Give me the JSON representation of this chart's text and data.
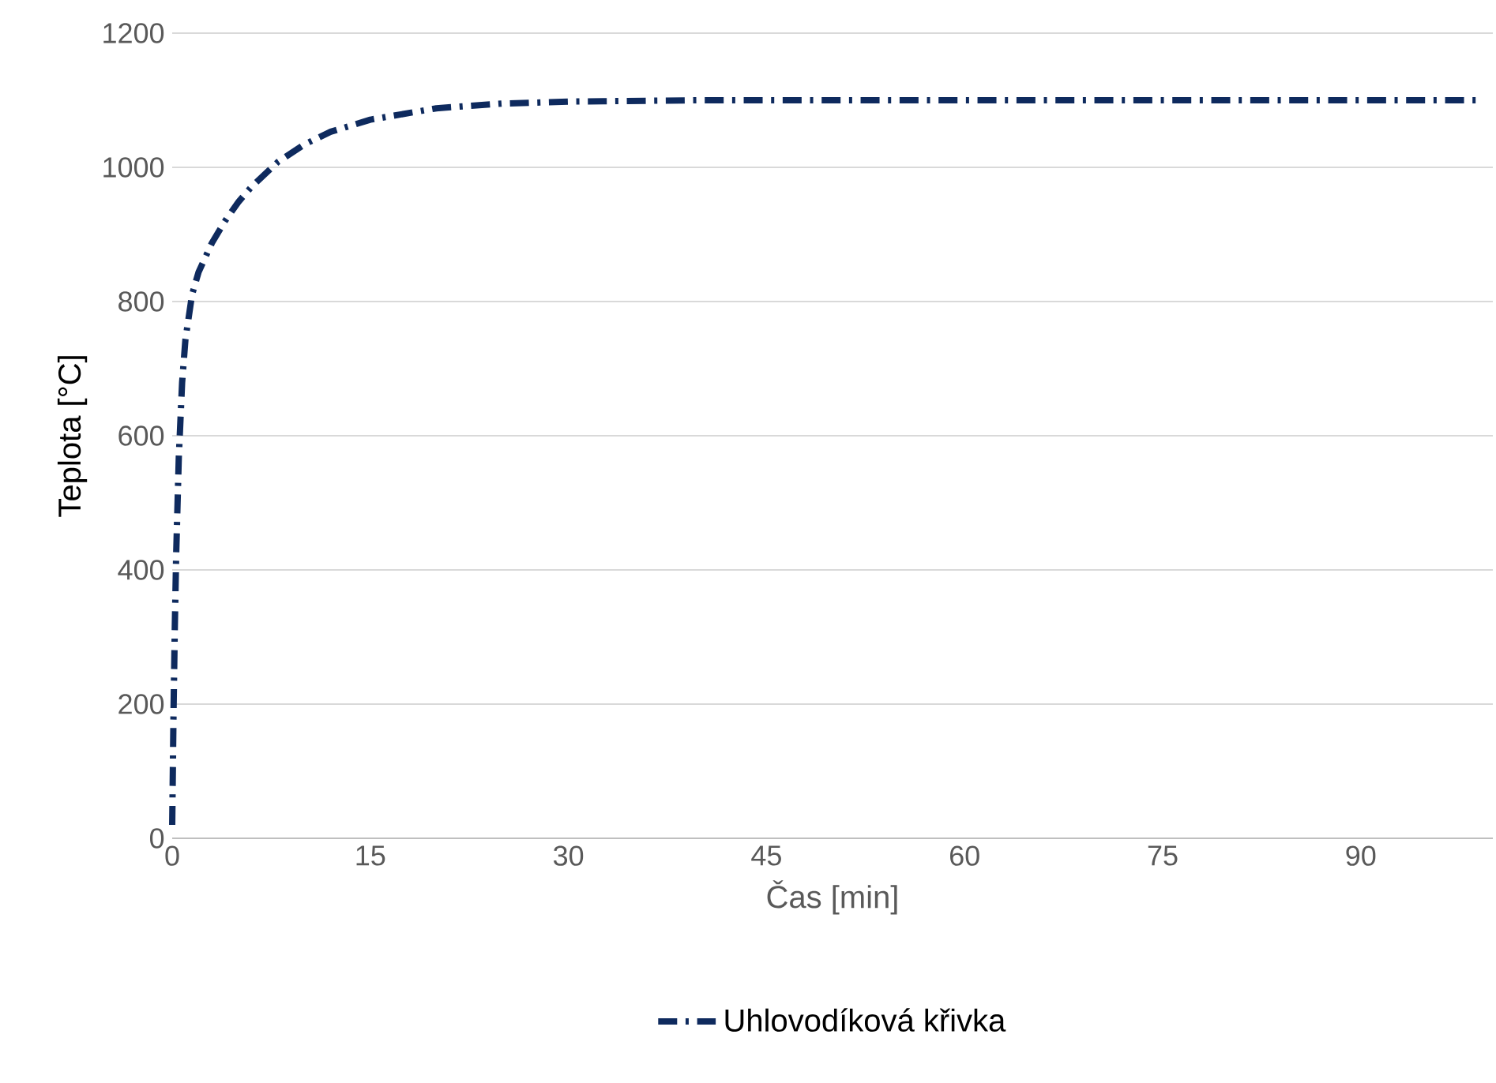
{
  "chart_data": {
    "type": "line",
    "xlabel": "Čas [min]",
    "ylabel": "Teplota [°C]",
    "x": [
      0,
      0.1,
      0.2,
      0.3,
      0.5,
      0.75,
      1,
      1.5,
      2,
      3,
      4,
      5,
      6,
      8,
      10,
      12,
      15,
      20,
      25,
      30,
      40,
      50,
      60,
      70,
      80,
      90,
      99
    ],
    "series": [
      {
        "name": "Uhlovodíková křivka",
        "color": "#0e2a5e",
        "values": [
          20,
          187,
          318,
          422,
          568,
          679,
          743,
          810,
          844,
          887,
          920,
          948,
          971,
          1008,
          1034,
          1053,
          1071,
          1088,
          1095,
          1098,
          1100,
          1100,
          1100,
          1100,
          1100,
          1100,
          1100
        ]
      }
    ],
    "xlim": [
      0,
      100
    ],
    "xticks": [
      0,
      15,
      30,
      45,
      60,
      75,
      90
    ],
    "ylim": [
      0,
      1200
    ],
    "yticks": [
      0,
      200,
      400,
      600,
      800,
      1000,
      1200
    ],
    "grid": "y",
    "legend": "bottom",
    "marker": "none",
    "line_style": "dashed"
  }
}
